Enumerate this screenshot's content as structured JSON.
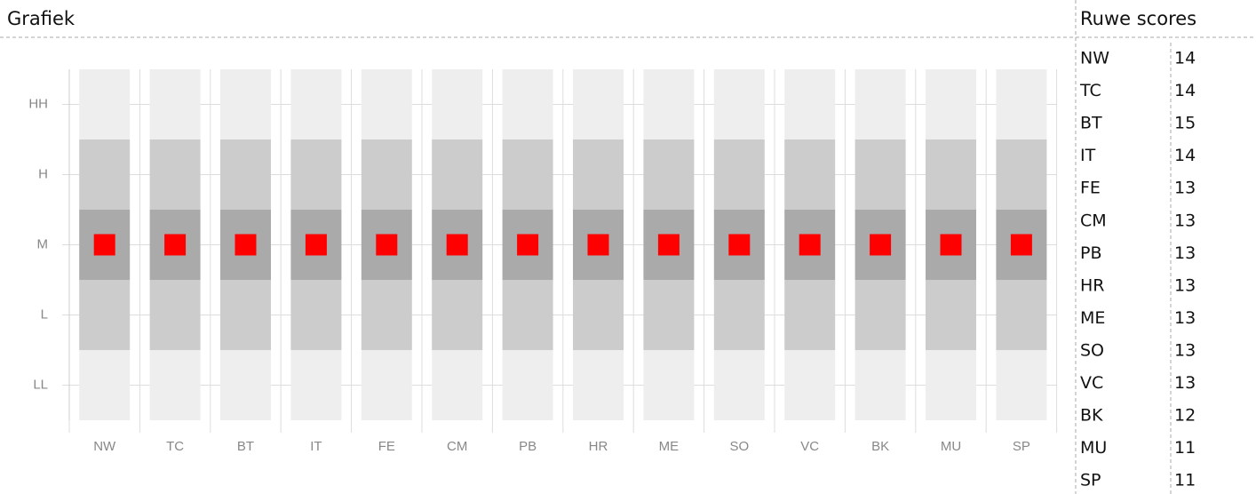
{
  "header": {
    "left": "Grafiek",
    "right": "Ruwe scores"
  },
  "chart_data": {
    "type": "categorical-dot",
    "categories": [
      "NW",
      "TC",
      "BT",
      "IT",
      "FE",
      "CM",
      "PB",
      "HR",
      "ME",
      "SO",
      "VC",
      "BK",
      "MU",
      "SP"
    ],
    "ycategories": [
      "HH",
      "H",
      "M",
      "L",
      "LL"
    ],
    "values": [
      "M",
      "M",
      "M",
      "M",
      "M",
      "M",
      "M",
      "M",
      "M",
      "M",
      "M",
      "M",
      "M",
      "M"
    ],
    "color": "#ff0000",
    "grid": true
  },
  "table": {
    "rows": [
      [
        "NW",
        14
      ],
      [
        "TC",
        14
      ],
      [
        "BT",
        15
      ],
      [
        "IT",
        14
      ],
      [
        "FE",
        13
      ],
      [
        "CM",
        13
      ],
      [
        "PB",
        13
      ],
      [
        "HR",
        13
      ],
      [
        "ME",
        13
      ],
      [
        "SO",
        13
      ],
      [
        "VC",
        13
      ],
      [
        "BK",
        12
      ],
      [
        "MU",
        11
      ],
      [
        "SP",
        11
      ]
    ]
  }
}
